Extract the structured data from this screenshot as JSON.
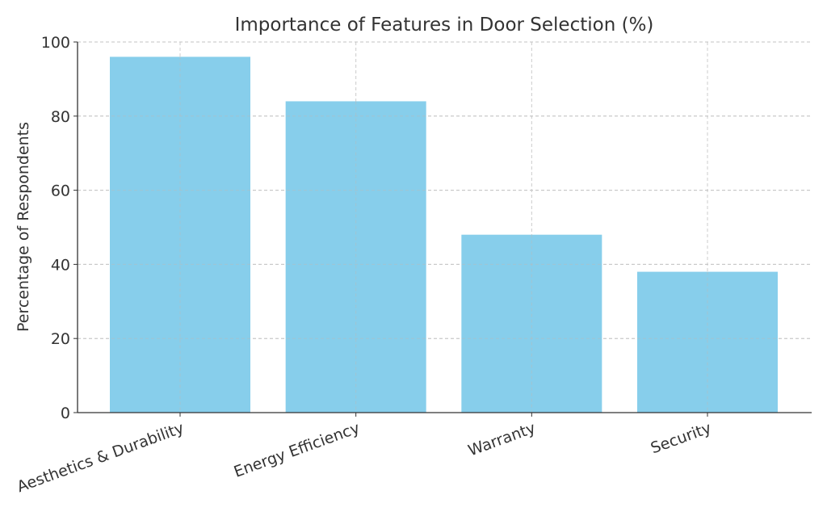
{
  "chart_data": {
    "type": "bar",
    "title": "Importance of Features in Door Selection (%)",
    "xlabel": "",
    "ylabel": "Percentage of Respondents",
    "categories": [
      "Aesthetics & Durability",
      "Energy Efficiency",
      "Warranty",
      "Security"
    ],
    "values": [
      96,
      84,
      48,
      38
    ],
    "ylim": [
      0,
      100
    ],
    "yticks": [
      0,
      20,
      40,
      60,
      80,
      100
    ],
    "grid": true,
    "legend": "none",
    "bar_color": "#87CEEB",
    "x_tick_rotation": -20
  }
}
